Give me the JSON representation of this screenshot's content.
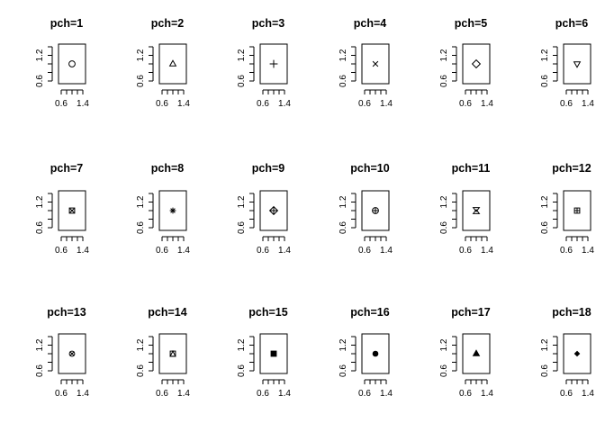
{
  "chart_data": {
    "type": "scatter",
    "layout": {
      "rows": 3,
      "cols": 6
    },
    "xlim": [
      0.6,
      1.4
    ],
    "ylim": [
      0.6,
      1.4
    ],
    "x_tick_labels": [
      "0.6",
      "1.4"
    ],
    "y_tick_labels": [
      "0.6",
      "1.2"
    ],
    "panels": [
      {
        "title": "pch=1",
        "pch": 1,
        "x": 1.0,
        "y": 1.0
      },
      {
        "title": "pch=2",
        "pch": 2,
        "x": 1.0,
        "y": 1.0
      },
      {
        "title": "pch=3",
        "pch": 3,
        "x": 1.0,
        "y": 1.0
      },
      {
        "title": "pch=4",
        "pch": 4,
        "x": 1.0,
        "y": 1.0
      },
      {
        "title": "pch=5",
        "pch": 5,
        "x": 1.0,
        "y": 1.0
      },
      {
        "title": "pch=6",
        "pch": 6,
        "x": 1.0,
        "y": 1.0
      },
      {
        "title": "pch=7",
        "pch": 7,
        "x": 1.0,
        "y": 1.0
      },
      {
        "title": "pch=8",
        "pch": 8,
        "x": 1.0,
        "y": 1.0
      },
      {
        "title": "pch=9",
        "pch": 9,
        "x": 1.0,
        "y": 1.0
      },
      {
        "title": "pch=10",
        "pch": 10,
        "x": 1.0,
        "y": 1.0
      },
      {
        "title": "pch=11",
        "pch": 11,
        "x": 1.0,
        "y": 1.0
      },
      {
        "title": "pch=12",
        "pch": 12,
        "x": 1.0,
        "y": 1.0
      },
      {
        "title": "pch=13",
        "pch": 13,
        "x": 1.0,
        "y": 1.0
      },
      {
        "title": "pch=14",
        "pch": 14,
        "x": 1.0,
        "y": 1.0
      },
      {
        "title": "pch=15",
        "pch": 15,
        "x": 1.0,
        "y": 1.0
      },
      {
        "title": "pch=16",
        "pch": 16,
        "x": 1.0,
        "y": 1.0
      },
      {
        "title": "pch=17",
        "pch": 17,
        "x": 1.0,
        "y": 1.0
      },
      {
        "title": "pch=18",
        "pch": 18,
        "x": 1.0,
        "y": 1.0
      }
    ],
    "grid": false,
    "legend": "none",
    "colors": {
      "foreground": "#000000",
      "background": "#ffffff"
    }
  }
}
